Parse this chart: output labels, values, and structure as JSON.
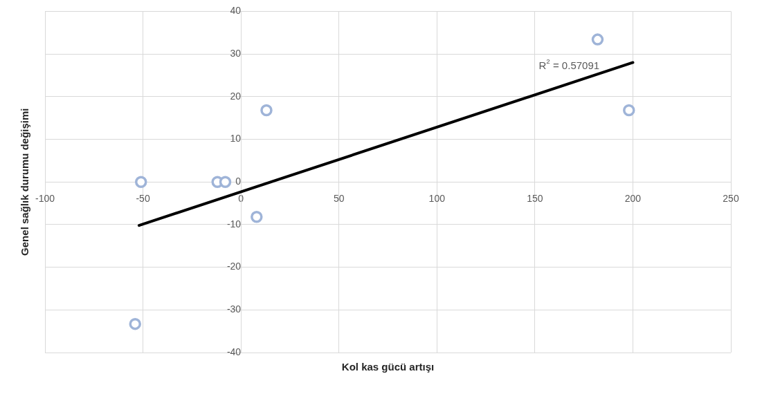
{
  "chart_data": {
    "type": "scatter",
    "xlabel": "Kol kas gücü artışı",
    "ylabel": "Genel sağlık durumu değişimi",
    "xlim": [
      -100,
      250
    ],
    "xticks": [
      -100,
      -50,
      0,
      50,
      100,
      150,
      200,
      250
    ],
    "ylim": [
      -40,
      40
    ],
    "yticks": [
      -40,
      -30,
      -20,
      -10,
      0,
      10,
      20,
      30,
      40
    ],
    "grid": true,
    "marker": "circle",
    "series": [
      {
        "color": "#9fb4d8",
        "x": [
          -51,
          -54,
          -12,
          -8,
          8,
          13,
          182,
          198
        ],
        "values": [
          0,
          -33.3,
          0,
          0,
          -8.2,
          16.8,
          33.4,
          16.8
        ]
      },
      {
        "type": "line",
        "color": "#000000",
        "marker": "none",
        "x": [
          -52,
          200
        ],
        "values": [
          -10.2,
          28
        ]
      }
    ],
    "annotations": [
      "R$^{2}$ = 0.57091"
    ]
  }
}
